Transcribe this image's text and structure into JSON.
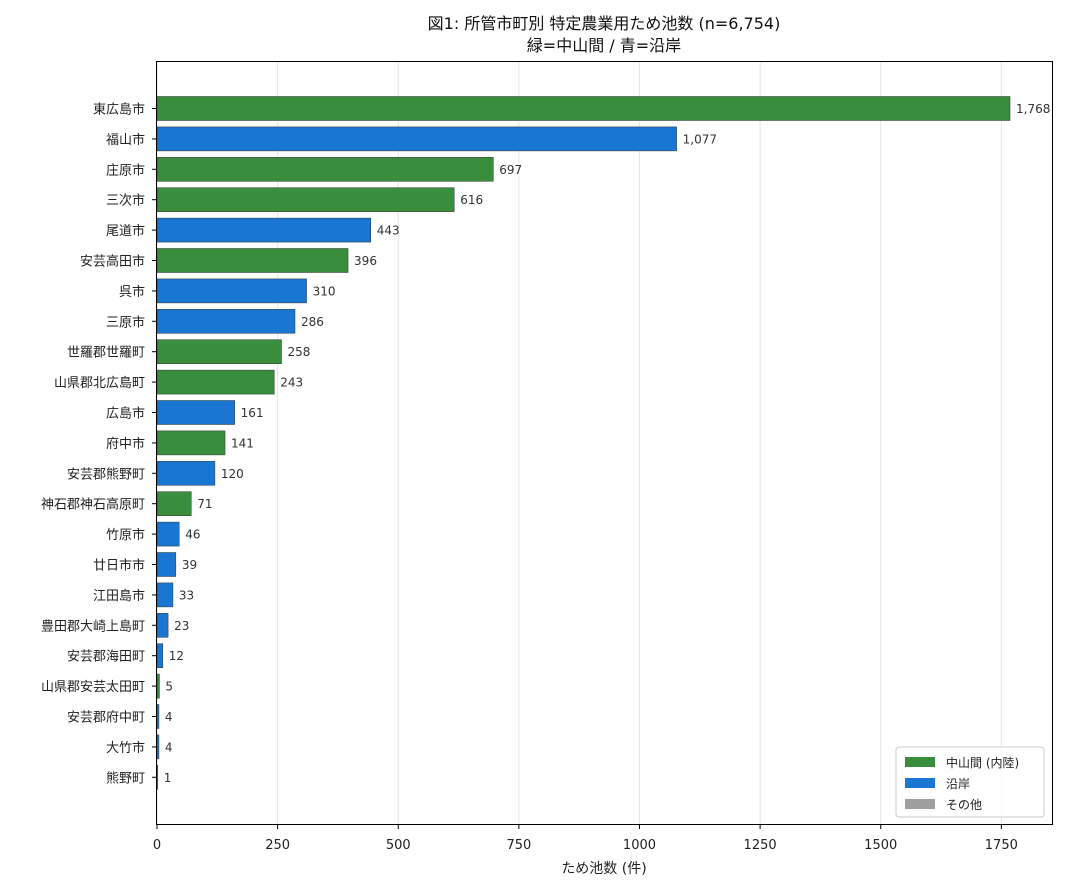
{
  "chart_data": {
    "type": "bar",
    "orientation": "horizontal",
    "title": "図1: 所管市町別 特定農業用ため池数 (n=6,754)",
    "subtitle": "緑=中山間 / 青=沿岸",
    "xlabel": "ため池数 (件)",
    "ylabel": "",
    "xlim": [
      0,
      1855
    ],
    "xticks": [
      0,
      250,
      500,
      750,
      1000,
      1250,
      1500,
      1750
    ],
    "grid": "vertical",
    "legend_position": "bottom-right",
    "categories": [
      "東広島市",
      "福山市",
      "庄原市",
      "三次市",
      "尾道市",
      "安芸高田市",
      "呉市",
      "三原市",
      "世羅郡世羅町",
      "山県郡北広島町",
      "広島市",
      "府中市",
      "安芸郡熊野町",
      "神石郡神石高原町",
      "竹原市",
      "廿日市市",
      "江田島市",
      "豊田郡大崎上島町",
      "安芸郡海田町",
      "山県郡安芸太田町",
      "安芸郡府中町",
      "大竹市",
      "熊野町"
    ],
    "values": [
      1768,
      1077,
      697,
      616,
      443,
      396,
      310,
      286,
      258,
      243,
      161,
      141,
      120,
      71,
      46,
      39,
      33,
      23,
      12,
      5,
      4,
      4,
      1
    ],
    "value_labels": [
      "1,768",
      "1,077",
      "697",
      "616",
      "443",
      "396",
      "310",
      "286",
      "258",
      "243",
      "161",
      "141",
      "120",
      "71",
      "46",
      "39",
      "33",
      "23",
      "12",
      "5",
      "4",
      "4",
      "1"
    ],
    "groups": [
      "mountain",
      "coastal",
      "mountain",
      "mountain",
      "coastal",
      "mountain",
      "coastal",
      "coastal",
      "mountain",
      "mountain",
      "coastal",
      "mountain",
      "coastal",
      "mountain",
      "coastal",
      "coastal",
      "coastal",
      "coastal",
      "coastal",
      "mountain",
      "coastal",
      "coastal",
      "other"
    ],
    "series": [
      {
        "key": "mountain",
        "name": "中山間 (内陸)",
        "color": "#388e3c"
      },
      {
        "key": "coastal",
        "name": "沿岸",
        "color": "#1976d2"
      },
      {
        "key": "other",
        "name": "その他",
        "color": "#9e9e9e"
      }
    ]
  }
}
